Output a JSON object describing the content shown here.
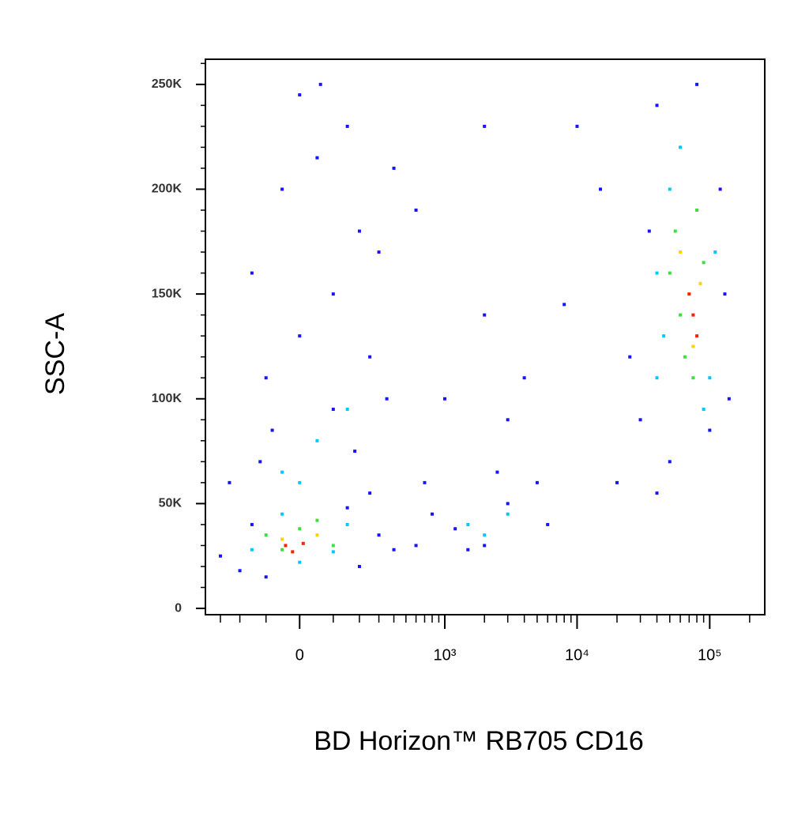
{
  "chart_data": {
    "type": "scatter",
    "xlabel": "BD Horizon™ RB705 CD16",
    "ylabel": "SSC-A",
    "xscale": "biexponential",
    "xlim": [
      -400,
      260000
    ],
    "ylim": [
      -3000,
      262000
    ],
    "xticks": [
      0,
      {
        "value": 1000,
        "label": "10³"
      },
      {
        "value": 10000,
        "label": "10⁴"
      },
      {
        "value": 100000,
        "label": "10⁵"
      }
    ],
    "xminorticks": [
      -300,
      -200,
      -100,
      100,
      200,
      300,
      400,
      500,
      600,
      700,
      800,
      900,
      2000,
      3000,
      4000,
      5000,
      6000,
      7000,
      8000,
      9000,
      20000,
      30000,
      40000,
      50000,
      60000,
      70000,
      80000,
      90000,
      200000
    ],
    "yticks": [
      0,
      {
        "value": 50000,
        "label": "50K"
      },
      {
        "value": 100000,
        "label": "100K"
      },
      {
        "value": 150000,
        "label": "150K"
      },
      {
        "value": 200000,
        "label": "200K"
      },
      {
        "value": 250000,
        "label": "250K"
      }
    ],
    "yminorticks": [
      10000,
      20000,
      30000,
      40000,
      60000,
      70000,
      80000,
      90000,
      110000,
      120000,
      130000,
      140000,
      160000,
      170000,
      180000,
      190000,
      210000,
      220000,
      230000,
      240000,
      260000
    ],
    "series": [
      {
        "color": "#1414ff",
        "x": [
          -300,
          -200,
          -150,
          -100,
          200,
          300,
          400,
          150,
          -250,
          250,
          -100,
          0,
          100,
          200,
          -50,
          50,
          150,
          0,
          300,
          -150,
          250,
          100,
          -80,
          350,
          180,
          -120,
          60,
          400,
          600,
          800,
          1200,
          2000,
          3000,
          5000,
          1500,
          2500,
          700,
          1000,
          2000,
          3000,
          4000,
          600,
          2000,
          8000,
          10000,
          15000,
          6000,
          40000,
          20000,
          30000,
          40000,
          120000,
          130000,
          25000,
          35000,
          100000,
          80000,
          50000,
          140000
        ],
        "values": [
          25000,
          18000,
          40000,
          15000,
          20000,
          35000,
          28000,
          48000,
          60000,
          55000,
          110000,
          130000,
          150000,
          180000,
          200000,
          215000,
          230000,
          245000,
          170000,
          160000,
          120000,
          95000,
          85000,
          100000,
          75000,
          70000,
          250000,
          210000,
          30000,
          45000,
          38000,
          30000,
          50000,
          60000,
          28000,
          65000,
          60000,
          100000,
          140000,
          90000,
          110000,
          190000,
          230000,
          145000,
          230000,
          200000,
          40000,
          55000,
          60000,
          90000,
          240000,
          200000,
          150000,
          120000,
          180000,
          85000,
          250000,
          70000,
          100000
        ]
      },
      {
        "color": "#00c8ff",
        "x": [
          -150,
          0,
          150,
          -50,
          100,
          -50,
          50,
          150,
          0,
          1500,
          3000,
          2000,
          40000,
          50000,
          100000,
          60000,
          40000,
          110000,
          45000,
          90000
        ],
        "values": [
          28000,
          22000,
          40000,
          45000,
          27000,
          65000,
          80000,
          95000,
          60000,
          40000,
          45000,
          35000,
          110000,
          200000,
          110000,
          220000,
          160000,
          170000,
          130000,
          95000
        ]
      },
      {
        "color": "#3ce03c",
        "x": [
          -100,
          0,
          100,
          -50,
          50,
          55000,
          80000,
          60000,
          75000,
          50000,
          90000,
          65000
        ],
        "values": [
          35000,
          38000,
          30000,
          28000,
          42000,
          180000,
          190000,
          140000,
          110000,
          160000,
          165000,
          120000
        ]
      },
      {
        "color": "#ffd200",
        "x": [
          -50,
          50,
          70000,
          85000,
          75000,
          60000
        ],
        "values": [
          33000,
          35000,
          150000,
          155000,
          125000,
          170000
        ]
      },
      {
        "color": "#ff2000",
        "x": [
          -40,
          10,
          -20,
          75000,
          80000,
          70000
        ],
        "values": [
          30000,
          31000,
          27000,
          140000,
          130000,
          150000
        ]
      }
    ]
  }
}
